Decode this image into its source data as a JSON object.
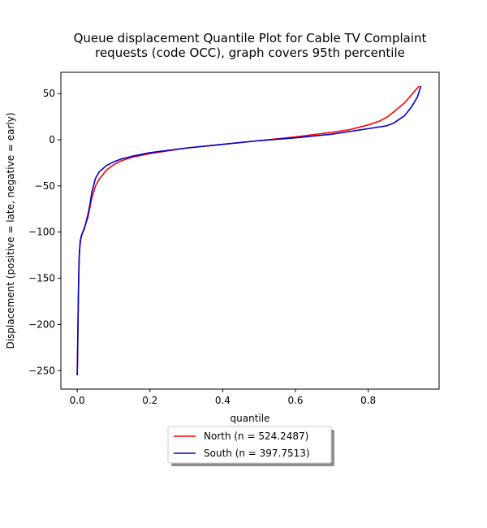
{
  "chart_data": {
    "type": "line",
    "title_lines": [
      "Queue displacement Quantile Plot for Cable TV Complaint",
      "requests (code OCC), graph covers 95th percentile"
    ],
    "xlabel": "quantile",
    "ylabel": "Displacement (positive = late, negative = early)",
    "xlim": [
      -0.045,
      0.995
    ],
    "ylim": [
      -270,
      73
    ],
    "xticks": [
      0.0,
      0.2,
      0.4,
      0.6,
      0.8
    ],
    "xtick_labels": [
      "0.0",
      "0.2",
      "0.4",
      "0.6",
      "0.8"
    ],
    "yticks": [
      50,
      0,
      -50,
      -100,
      -150,
      -200,
      -250
    ],
    "ytick_labels": [
      "50",
      "0",
      "−50",
      "−100",
      "−150",
      "−200",
      "−250"
    ],
    "grid": false,
    "legend_position": "bottom-center",
    "series": [
      {
        "name": "North (n = 524.2487)",
        "color": "#ff0000",
        "x": [
          0.0,
          0.002,
          0.004,
          0.006,
          0.01,
          0.015,
          0.02,
          0.03,
          0.04,
          0.05,
          0.06,
          0.08,
          0.1,
          0.12,
          0.15,
          0.2,
          0.3,
          0.4,
          0.5,
          0.6,
          0.7,
          0.75,
          0.8,
          0.83,
          0.85,
          0.87,
          0.9,
          0.92,
          0.94
        ],
        "y": [
          -255,
          -200,
          -150,
          -120,
          -107,
          -100,
          -95,
          -83,
          -63,
          -50,
          -43,
          -33,
          -27,
          -23,
          -19,
          -15,
          -9,
          -5,
          -1,
          3,
          8,
          11,
          16,
          20,
          24,
          30,
          40,
          49,
          58
        ]
      },
      {
        "name": "South (n = 397.7513)",
        "color": "#0000cc",
        "x": [
          0.0,
          0.001,
          0.003,
          0.005,
          0.008,
          0.012,
          0.02,
          0.03,
          0.035,
          0.04,
          0.05,
          0.06,
          0.08,
          0.1,
          0.12,
          0.15,
          0.2,
          0.3,
          0.4,
          0.5,
          0.6,
          0.7,
          0.8,
          0.85,
          0.87,
          0.9,
          0.92,
          0.935,
          0.945
        ],
        "y": [
          -255,
          -230,
          -170,
          -130,
          -110,
          -103,
          -96,
          -80,
          -70,
          -57,
          -42,
          -35,
          -28,
          -24,
          -21,
          -18,
          -14,
          -9,
          -5,
          -1,
          2,
          6,
          12,
          15,
          18,
          26,
          36,
          46,
          58
        ]
      }
    ]
  }
}
